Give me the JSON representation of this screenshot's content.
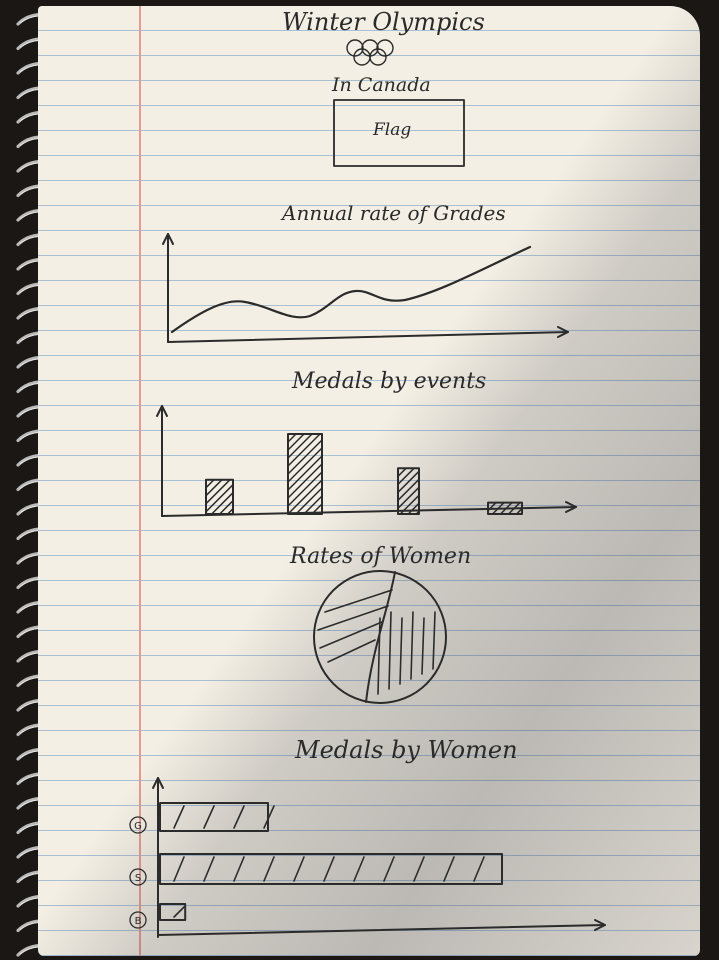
{
  "title": "Winter Olympics",
  "subtitle": "In Canada",
  "flag_label": "Flag",
  "colors": {
    "ink": "#2b2b2b",
    "paper": "#f3efe4",
    "rule": "#a9bfd4",
    "margin": "#e79a8f"
  },
  "icons": [
    "olympic-rings-icon",
    "spiral-binding"
  ],
  "charts": [
    {
      "type": "line",
      "title": "Annual rate of Grades"
    },
    {
      "type": "bar",
      "title": "Medals by events",
      "values": [
        3,
        7,
        4,
        1
      ]
    },
    {
      "type": "pie",
      "title": "Rates of Women",
      "slices": [
        0.55,
        0.45
      ]
    },
    {
      "type": "bar",
      "orientation": "horizontal",
      "title": "Medals by Women",
      "categories": [
        "G",
        "S",
        "B"
      ],
      "values": [
        3,
        9.5,
        0.7
      ]
    }
  ]
}
